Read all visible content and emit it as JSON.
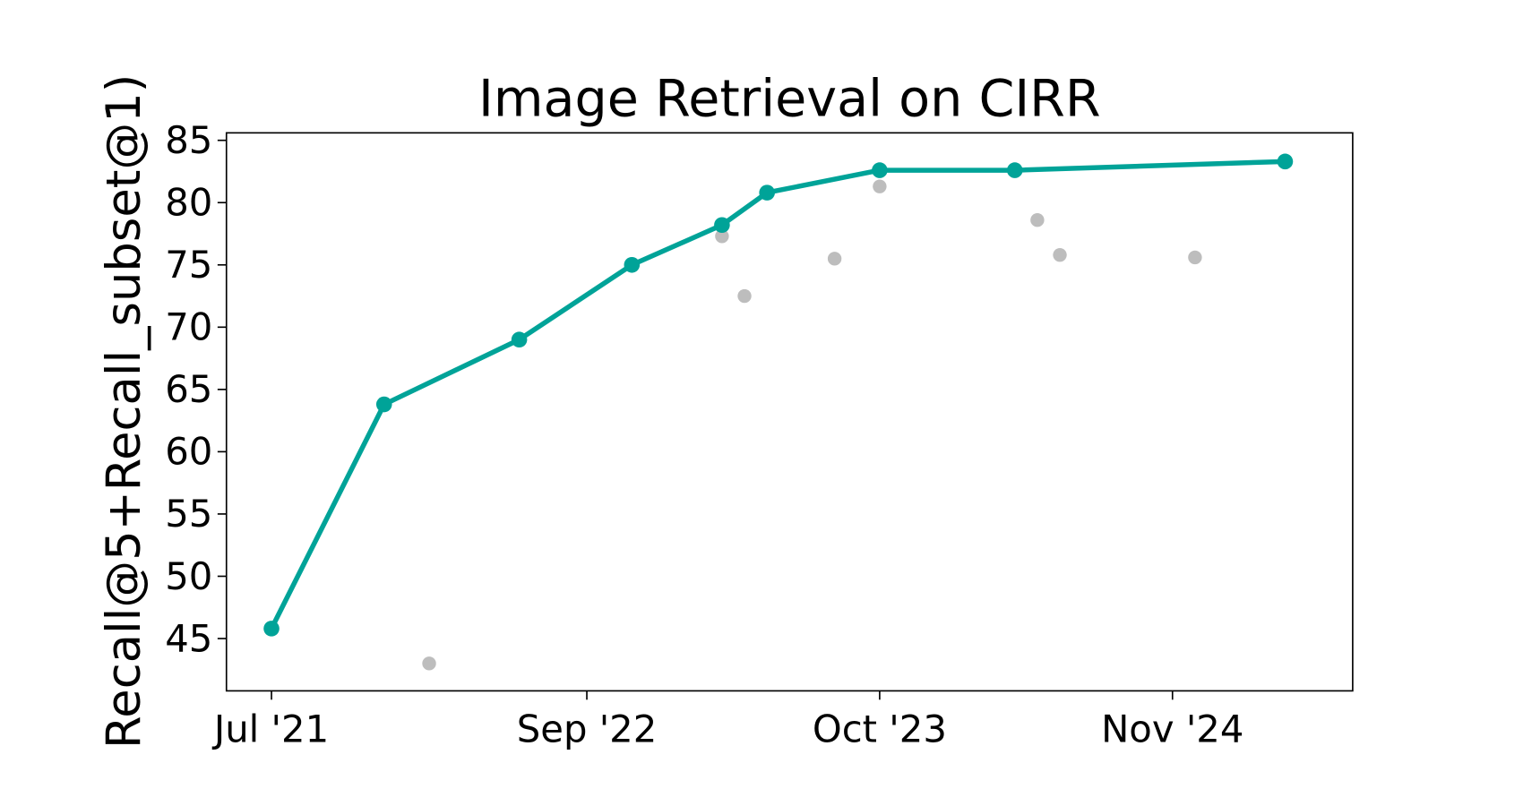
{
  "chart_data": {
    "type": "line",
    "title": "Image Retrieval on CIRR",
    "y_label": "Recall@5+Recall_subset@1)",
    "series": [
      {
        "style": "line",
        "color": "#00a398",
        "x": [
          "2021-07",
          "2021-12",
          "2022-06",
          "2022-11",
          "2023-03",
          "2023-05",
          "2023-10",
          "2024-04",
          "2025-04"
        ],
        "values": [
          45.8,
          63.8,
          69.0,
          75.0,
          78.2,
          80.8,
          82.6,
          82.6,
          83.3
        ]
      },
      {
        "style": "points",
        "color": "#bdbdbd",
        "x": [
          "2022-02",
          "2023-03",
          "2023-04",
          "2023-08",
          "2023-10",
          "2024-05",
          "2024-06",
          "2024-12"
        ],
        "values": [
          43.0,
          77.3,
          72.5,
          75.5,
          81.3,
          78.6,
          75.8,
          75.6
        ]
      }
    ],
    "xlim": [
      "2021-05",
      "2025-07"
    ],
    "xticks": [
      {
        "value": "2021-07",
        "label": "Jul '21"
      },
      {
        "value": "2022-09",
        "label": "Sep '22"
      },
      {
        "value": "2023-10",
        "label": "Oct '23"
      },
      {
        "value": "2024-11",
        "label": "Nov '24"
      }
    ],
    "ylim": [
      40.8,
      85.6
    ],
    "yticks": [
      45,
      50,
      55,
      60,
      65,
      70,
      75,
      80,
      85
    ]
  }
}
